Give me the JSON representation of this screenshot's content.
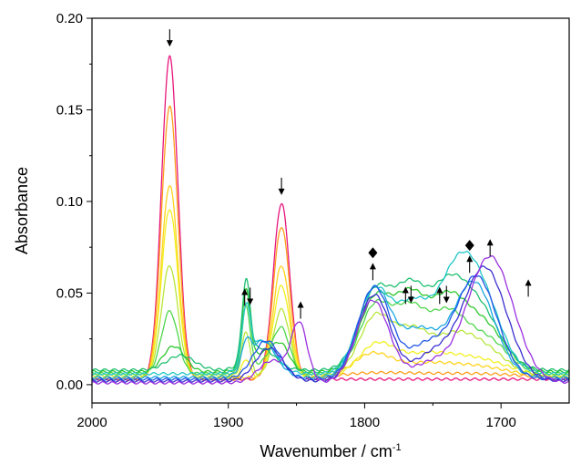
{
  "chart_data": {
    "type": "line",
    "xlabel": "Wavenumber / cm",
    "xlabel_sup": "-1",
    "ylabel": "Absorbance",
    "xlim": [
      2000,
      1650
    ],
    "ylim": [
      -0.01,
      0.2
    ],
    "x_reversed": true,
    "x_ticks": [
      2000,
      1900,
      1800,
      1700
    ],
    "y_ticks": [
      0.0,
      0.05,
      0.1,
      0.15,
      0.2
    ],
    "y_tick_labels": [
      "0.00",
      "0.05",
      "0.10",
      "0.15",
      "0.20"
    ],
    "series": [
      {
        "color": "#e8157d",
        "peaks": [
          [
            1943,
            0.176,
            6
          ],
          [
            1861,
            0.096,
            6
          ]
        ],
        "baseline": 0.003
      },
      {
        "color": "#ff9e1b",
        "peaks": [
          [
            1943,
            0.149,
            6
          ],
          [
            1861,
            0.083,
            6
          ],
          [
            1795,
            0.003,
            30
          ],
          [
            1720,
            0.003,
            40
          ]
        ],
        "baseline": 0.003
      },
      {
        "color": "#ffd31c",
        "peaks": [
          [
            1943,
            0.105,
            6
          ],
          [
            1861,
            0.061,
            6
          ],
          [
            1795,
            0.012,
            14
          ],
          [
            1760,
            0.006,
            20
          ],
          [
            1720,
            0.006,
            25
          ]
        ],
        "baseline": 0.004
      },
      {
        "color": "#f2f020",
        "peaks": [
          [
            1943,
            0.092,
            6
          ],
          [
            1861,
            0.05,
            6
          ],
          [
            1887,
            0.01,
            3
          ],
          [
            1792,
            0.016,
            13
          ],
          [
            1760,
            0.01,
            20
          ],
          [
            1720,
            0.01,
            25
          ]
        ],
        "baseline": 0.004
      },
      {
        "color": "#b8e63a",
        "peaks": [
          [
            1943,
            0.06,
            6
          ],
          [
            1861,
            0.036,
            6
          ],
          [
            1887,
            0.024,
            3
          ],
          [
            1792,
            0.032,
            12
          ],
          [
            1765,
            0.022,
            12
          ],
          [
            1735,
            0.02,
            15
          ],
          [
            1710,
            0.012,
            15
          ]
        ],
        "baseline": 0.005
      },
      {
        "color": "#4fd64b",
        "peaks": [
          [
            1943,
            0.034,
            6
          ],
          [
            1861,
            0.022,
            6
          ],
          [
            1887,
            0.035,
            3
          ],
          [
            1872,
            0.006,
            10
          ],
          [
            1792,
            0.037,
            12
          ],
          [
            1767,
            0.03,
            11
          ],
          [
            1740,
            0.032,
            14
          ],
          [
            1710,
            0.018,
            15
          ]
        ],
        "baseline": 0.006
      },
      {
        "color": "#2ec72e",
        "peaks": [
          [
            1940,
            0.014,
            8
          ],
          [
            1861,
            0.012,
            6
          ],
          [
            1887,
            0.04,
            3
          ],
          [
            1875,
            0.01,
            10
          ],
          [
            1792,
            0.04,
            12
          ],
          [
            1767,
            0.035,
            11
          ],
          [
            1740,
            0.038,
            14
          ],
          [
            1712,
            0.024,
            15
          ]
        ],
        "baseline": 0.007
      },
      {
        "color": "#1ebf6f",
        "peaks": [
          [
            1935,
            0.008,
            10
          ],
          [
            1887,
            0.043,
            3
          ],
          [
            1876,
            0.012,
            10
          ],
          [
            1792,
            0.043,
            12
          ],
          [
            1767,
            0.038,
            11
          ],
          [
            1740,
            0.042,
            14
          ],
          [
            1715,
            0.03,
            15
          ]
        ],
        "baseline": 0.008
      },
      {
        "color": "#20c6c6",
        "peaks": [
          [
            1887,
            0.03,
            3
          ],
          [
            1875,
            0.018,
            10
          ],
          [
            1793,
            0.045,
            12
          ],
          [
            1765,
            0.034,
            12
          ],
          [
            1735,
            0.044,
            14
          ],
          [
            1715,
            0.04,
            15
          ]
        ],
        "baseline": 0.006
      },
      {
        "color": "#18a8e0",
        "peaks": [
          [
            1887,
            0.012,
            3
          ],
          [
            1875,
            0.02,
            10
          ],
          [
            1793,
            0.048,
            12
          ],
          [
            1760,
            0.025,
            14
          ],
          [
            1720,
            0.052,
            15
          ]
        ],
        "baseline": 0.004
      },
      {
        "color": "#2056e6",
        "peaks": [
          [
            1872,
            0.021,
            10
          ],
          [
            1793,
            0.05,
            12
          ],
          [
            1755,
            0.018,
            14
          ],
          [
            1718,
            0.056,
            15
          ]
        ],
        "baseline": 0.003
      },
      {
        "color": "#3a2fd0",
        "peaks": [
          [
            1870,
            0.018,
            10
          ],
          [
            1793,
            0.047,
            12
          ],
          [
            1750,
            0.014,
            14
          ],
          [
            1712,
            0.062,
            16
          ]
        ],
        "baseline": 0.002
      },
      {
        "color": "#9a30e0",
        "peaks": [
          [
            1848,
            0.032,
            6
          ],
          [
            1868,
            0.012,
            10
          ],
          [
            1794,
            0.045,
            12
          ],
          [
            1752,
            0.01,
            14
          ],
          [
            1708,
            0.069,
            17
          ]
        ],
        "baseline": 0.001
      }
    ],
    "annotations": [
      {
        "type": "arrow-down",
        "x": 1943,
        "y": 0.189
      },
      {
        "type": "arrow-down",
        "x": 1861,
        "y": 0.108
      },
      {
        "type": "arrow-up",
        "x": 1888,
        "y": 0.048
      },
      {
        "type": "arrow-down",
        "x": 1884,
        "y": 0.048
      },
      {
        "type": "arrow-up",
        "x": 1847,
        "y": 0.041
      },
      {
        "type": "diamond",
        "x": 1794,
        "y": 0.072
      },
      {
        "type": "arrow-up",
        "x": 1794,
        "y": 0.062
      },
      {
        "type": "arrow-up",
        "x": 1770,
        "y": 0.049
      },
      {
        "type": "arrow-down",
        "x": 1766,
        "y": 0.049
      },
      {
        "type": "arrow-up",
        "x": 1745,
        "y": 0.049
      },
      {
        "type": "arrow-down",
        "x": 1740,
        "y": 0.049
      },
      {
        "type": "diamond",
        "x": 1723,
        "y": 0.076
      },
      {
        "type": "arrow-up",
        "x": 1723,
        "y": 0.066
      },
      {
        "type": "arrow-up",
        "x": 1708,
        "y": 0.075
      },
      {
        "type": "arrow-up",
        "x": 1680,
        "y": 0.053
      }
    ]
  }
}
